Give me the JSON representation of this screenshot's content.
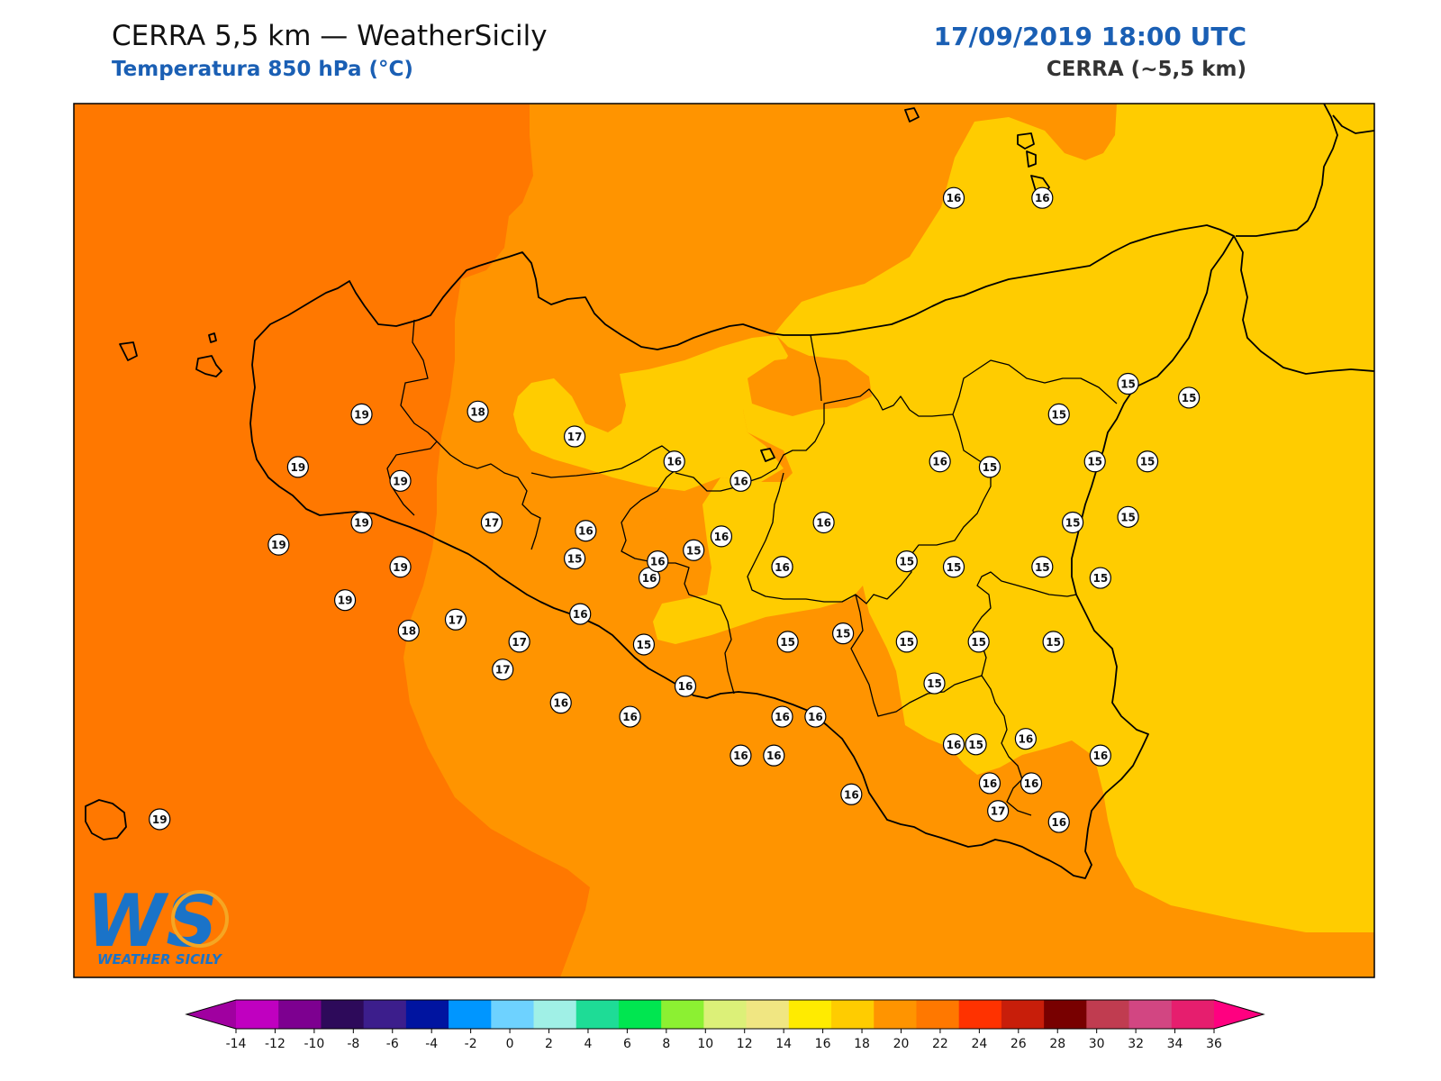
{
  "header": {
    "title": "CERRA 5,5 km — WeatherSicily",
    "subtitle": "Temperatura 850 hPa (°C)",
    "datetime": "17/09/2019 18:00 UTC",
    "model": "CERRA (~5,5 km)"
  },
  "logo": {
    "text": "WS",
    "caption": "WEATHER SICILY"
  },
  "colors": {
    "band_19": "#ff7800",
    "band_17": "#ff9400",
    "band_15": "#ffcc00",
    "coast": "#000000"
  },
  "colorbar": {
    "colors": [
      "#a000a0",
      "#c000c0",
      "#7d0090",
      "#2d0a5a",
      "#3c1e8c",
      "#0014a0",
      "#0096ff",
      "#6ed2ff",
      "#a0f0e6",
      "#1edc96",
      "#00e650",
      "#8cf032",
      "#dcf078",
      "#f0e682",
      "#ffeb00",
      "#ffcc00",
      "#ff9400",
      "#ff7800",
      "#ff3200",
      "#c81e0a",
      "#780000",
      "#c03c50",
      "#d24682",
      "#e61e6e",
      "#ff0080"
    ],
    "ticks": [
      "-14",
      "-12",
      "-10",
      "-8",
      "-6",
      "-4",
      "-2",
      "0",
      "2",
      "4",
      "6",
      "8",
      "10",
      "12",
      "14",
      "16",
      "18",
      "20",
      "22",
      "24",
      "26",
      "28",
      "30",
      "32",
      "34",
      "36"
    ]
  },
  "stations": [
    {
      "v": "16",
      "lon": 14.93,
      "lat": 38.86
    },
    {
      "v": "16",
      "lon": 15.25,
      "lat": 38.86
    },
    {
      "v": "19",
      "lon": 12.79,
      "lat": 38.08
    },
    {
      "v": "18",
      "lon": 13.21,
      "lat": 38.09
    },
    {
      "v": "17",
      "lon": 13.56,
      "lat": 38.0
    },
    {
      "v": "19",
      "lon": 12.56,
      "lat": 37.89
    },
    {
      "v": "19",
      "lon": 12.93,
      "lat": 37.84
    },
    {
      "v": "16",
      "lon": 13.92,
      "lat": 37.91
    },
    {
      "v": "16",
      "lon": 14.16,
      "lat": 37.84
    },
    {
      "v": "16",
      "lon": 14.88,
      "lat": 37.91
    },
    {
      "v": "15",
      "lon": 15.06,
      "lat": 37.89
    },
    {
      "v": "15",
      "lon": 15.31,
      "lat": 38.08
    },
    {
      "v": "15",
      "lon": 15.56,
      "lat": 38.19
    },
    {
      "v": "15",
      "lon": 15.78,
      "lat": 38.14
    },
    {
      "v": "15",
      "lon": 15.44,
      "lat": 37.91
    },
    {
      "v": "15",
      "lon": 15.63,
      "lat": 37.91
    },
    {
      "v": "16",
      "lon": 14.09,
      "lat": 37.64
    },
    {
      "v": "19",
      "lon": 12.79,
      "lat": 37.69
    },
    {
      "v": "17",
      "lon": 13.26,
      "lat": 37.69
    },
    {
      "v": "16",
      "lon": 13.6,
      "lat": 37.66
    },
    {
      "v": "15",
      "lon": 13.99,
      "lat": 37.59
    },
    {
      "v": "16",
      "lon": 13.83,
      "lat": 37.49
    },
    {
      "v": "16",
      "lon": 14.46,
      "lat": 37.69
    },
    {
      "v": "15",
      "lon": 15.36,
      "lat": 37.69
    },
    {
      "v": "15",
      "lon": 15.56,
      "lat": 37.71
    },
    {
      "v": "19",
      "lon": 12.49,
      "lat": 37.61
    },
    {
      "v": "19",
      "lon": 12.93,
      "lat": 37.53
    },
    {
      "v": "15",
      "lon": 13.56,
      "lat": 37.56
    },
    {
      "v": "16",
      "lon": 13.86,
      "lat": 37.55
    },
    {
      "v": "16",
      "lon": 14.31,
      "lat": 37.53
    },
    {
      "v": "16",
      "lon": 14.31,
      "lat": 37.53
    },
    {
      "v": "15",
      "lon": 14.76,
      "lat": 37.55
    },
    {
      "v": "15",
      "lon": 14.93,
      "lat": 37.53
    },
    {
      "v": "15",
      "lon": 15.25,
      "lat": 37.53
    },
    {
      "v": "15",
      "lon": 15.46,
      "lat": 37.49
    },
    {
      "v": "19",
      "lon": 12.73,
      "lat": 37.41
    },
    {
      "v": "17",
      "lon": 13.13,
      "lat": 37.34
    },
    {
      "v": "16",
      "lon": 13.58,
      "lat": 37.36
    },
    {
      "v": "18",
      "lon": 12.96,
      "lat": 37.3
    },
    {
      "v": "17",
      "lon": 13.36,
      "lat": 37.26
    },
    {
      "v": "15",
      "lon": 13.81,
      "lat": 37.25
    },
    {
      "v": "15",
      "lon": 14.33,
      "lat": 37.26
    },
    {
      "v": "15",
      "lon": 14.53,
      "lat": 37.29
    },
    {
      "v": "15",
      "lon": 14.76,
      "lat": 37.26
    },
    {
      "v": "15",
      "lon": 15.02,
      "lat": 37.26
    },
    {
      "v": "15",
      "lon": 15.29,
      "lat": 37.26
    },
    {
      "v": "17",
      "lon": 13.3,
      "lat": 37.16
    },
    {
      "v": "16",
      "lon": 13.96,
      "lat": 37.1
    },
    {
      "v": "15",
      "lon": 14.86,
      "lat": 37.11
    },
    {
      "v": "16",
      "lon": 13.51,
      "lat": 37.04
    },
    {
      "v": "16",
      "lon": 13.76,
      "lat": 36.99
    },
    {
      "v": "16",
      "lon": 14.31,
      "lat": 36.99
    },
    {
      "v": "16",
      "lon": 14.43,
      "lat": 36.99
    },
    {
      "v": "16",
      "lon": 14.93,
      "lat": 36.89
    },
    {
      "v": "15",
      "lon": 15.01,
      "lat": 36.89
    },
    {
      "v": "16",
      "lon": 15.19,
      "lat": 36.91
    },
    {
      "v": "16",
      "lon": 14.16,
      "lat": 36.85
    },
    {
      "v": "16",
      "lon": 14.28,
      "lat": 36.85
    },
    {
      "v": "16",
      "lon": 15.46,
      "lat": 36.85
    },
    {
      "v": "16",
      "lon": 15.06,
      "lat": 36.75
    },
    {
      "v": "16",
      "lon": 15.21,
      "lat": 36.75
    },
    {
      "v": "16",
      "lon": 14.56,
      "lat": 36.71
    },
    {
      "v": "17",
      "lon": 15.09,
      "lat": 36.65
    },
    {
      "v": "16",
      "lon": 15.31,
      "lat": 36.61
    },
    {
      "v": "19",
      "lon": 12.06,
      "lat": 36.62
    }
  ]
}
